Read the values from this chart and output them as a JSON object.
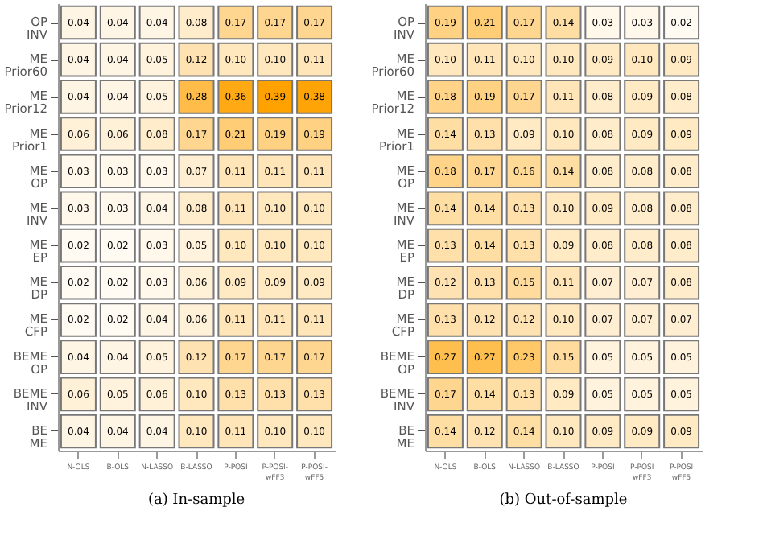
{
  "chart_data": [
    {
      "type": "heatmap",
      "title": "(a) In-sample",
      "data_labels": true,
      "cell_labels": [
        [
          "0.04",
          "0.04",
          "0.04",
          "0.08",
          "0.17",
          "0.17",
          "0.17"
        ],
        [
          "0.04",
          "0.04",
          "0.05",
          "0.12",
          "0.10",
          "0.10",
          "0.11"
        ],
        [
          "0.04",
          "0.04",
          "0.05",
          "0.28",
          "0.36",
          "0.39",
          "0.38"
        ],
        [
          "0.06",
          "0.06",
          "0.08",
          "0.17",
          "0.21",
          "0.19",
          "0.19"
        ],
        [
          "0.03",
          "0.03",
          "0.03",
          "0.07",
          "0.11",
          "0.11",
          "0.11"
        ],
        [
          "0.03",
          "0.03",
          "0.04",
          "0.08",
          "0.11",
          "0.10",
          "0.10"
        ],
        [
          "0.02",
          "0.02",
          "0.03",
          "0.05",
          "0.10",
          "0.10",
          "0.10"
        ],
        [
          "0.02",
          "0.02",
          "0.03",
          "0.06",
          "0.09",
          "0.09",
          "0.09"
        ],
        [
          "0.02",
          "0.02",
          "0.04",
          "0.06",
          "0.11",
          "0.11",
          "0.11"
        ],
        [
          "0.04",
          "0.04",
          "0.05",
          "0.12",
          "0.17",
          "0.17",
          "0.17"
        ],
        [
          "0.06",
          "0.05",
          "0.06",
          "0.10",
          "0.13",
          "0.13",
          "0.13"
        ],
        [
          "0.04",
          "0.04",
          "0.04",
          "0.10",
          "0.11",
          "0.10",
          "0.10"
        ]
      ],
      "categories": [
        "N-OLS",
        "B-OLS",
        "N-LASSO",
        "B-LASSO",
        "P-POSI",
        "P-POSI-\nwFF3",
        "P-POSI-\nwFF5"
      ],
      "y_categories": [
        "OP\nINV",
        "ME\nPrior60",
        "ME\nPrior12",
        "ME\nPrior1",
        "ME\nOP",
        "ME\nINV",
        "ME\nEP",
        "ME\nDP",
        "ME\nCFP",
        "BEME\nOP",
        "BEME\nINV",
        "BE\nME"
      ],
      "cells": [
        [
          0.04,
          0.04,
          0.04,
          0.08,
          0.17,
          0.17,
          0.17
        ],
        [
          0.04,
          0.04,
          0.05,
          0.12,
          0.1,
          0.1,
          0.11
        ],
        [
          0.04,
          0.04,
          0.05,
          0.28,
          0.36,
          0.39,
          0.38
        ],
        [
          0.06,
          0.06,
          0.08,
          0.17,
          0.21,
          0.19,
          0.19
        ],
        [
          0.03,
          0.03,
          0.03,
          0.07,
          0.11,
          0.11,
          0.11
        ],
        [
          0.03,
          0.03,
          0.04,
          0.08,
          0.11,
          0.1,
          0.1
        ],
        [
          0.02,
          0.02,
          0.03,
          0.05,
          0.1,
          0.1,
          0.1
        ],
        [
          0.02,
          0.02,
          0.03,
          0.06,
          0.09,
          0.09,
          0.09
        ],
        [
          0.02,
          0.02,
          0.04,
          0.06,
          0.11,
          0.11,
          0.11
        ],
        [
          0.04,
          0.04,
          0.05,
          0.12,
          0.17,
          0.17,
          0.17
        ],
        [
          0.06,
          0.05,
          0.06,
          0.1,
          0.13,
          0.13,
          0.13
        ],
        [
          0.04,
          0.04,
          0.04,
          0.1,
          0.11,
          0.1,
          0.1
        ]
      ]
    },
    {
      "type": "heatmap",
      "title": "(b) Out-of-sample",
      "data_labels": true,
      "cell_labels": [
        [
          "0.19",
          "0.21",
          "0.17",
          "0.14",
          "0.03",
          "0.03",
          "0.02"
        ],
        [
          "0.10",
          "0.11",
          "0.10",
          "0.10",
          "0.09",
          "0.10",
          "0.09"
        ],
        [
          "0.18",
          "0.19",
          "0.17",
          "0.11",
          "0.08",
          "0.09",
          "0.08"
        ],
        [
          "0.14",
          "0.13",
          "0.09",
          "0.10",
          "0.08",
          "0.09",
          "0.09"
        ],
        [
          "0.18",
          "0.17",
          "0.16",
          "0.14",
          "0.08",
          "0.08",
          "0.08"
        ],
        [
          "0.14",
          "0.14",
          "0.13",
          "0.10",
          "0.09",
          "0.08",
          "0.08"
        ],
        [
          "0.13",
          "0.14",
          "0.13",
          "0.09",
          "0.08",
          "0.08",
          "0.08"
        ],
        [
          "0.12",
          "0.13",
          "0.15",
          "0.11",
          "0.07",
          "0.07",
          "0.08"
        ],
        [
          "0.13",
          "0.12",
          "0.12",
          "0.10",
          "0.07",
          "0.07",
          "0.07"
        ],
        [
          "0.27",
          "0.27",
          "0.23",
          "0.15",
          "0.05",
          "0.05",
          "0.05"
        ],
        [
          "0.17",
          "0.14",
          "0.13",
          "0.09",
          "0.05",
          "0.05",
          "0.05"
        ],
        [
          "0.14",
          "0.12",
          "0.14",
          "0.10",
          "0.09",
          "0.09",
          "0.09"
        ]
      ],
      "categories": [
        "N-OLS",
        "B-OLS",
        "N-LASSO",
        "B-LASSO",
        "P-POSI",
        "P-POSI\nwFF3",
        "P-POSI\nwFF5"
      ],
      "y_categories": [
        "OP\nINV",
        "ME\nPrior60",
        "ME\nPrior12",
        "ME\nPrior1",
        "ME\nOP",
        "ME\nINV",
        "ME\nEP",
        "ME\nDP",
        "ME\nCFP",
        "BEME\nOP",
        "BEME\nINV",
        "BE\nME"
      ],
      "cells": [
        [
          0.19,
          0.21,
          0.17,
          0.14,
          0.03,
          0.03,
          0.02
        ],
        [
          0.1,
          0.11,
          0.1,
          0.1,
          0.09,
          0.1,
          0.09
        ],
        [
          0.18,
          0.19,
          0.17,
          0.11,
          0.08,
          0.09,
          0.08
        ],
        [
          0.14,
          0.13,
          0.09,
          0.1,
          0.08,
          0.09,
          0.09
        ],
        [
          0.18,
          0.17,
          0.16,
          0.14,
          0.08,
          0.08,
          0.08
        ],
        [
          0.14,
          0.14,
          0.13,
          0.1,
          0.09,
          0.08,
          0.08
        ],
        [
          0.13,
          0.14,
          0.13,
          0.09,
          0.08,
          0.08,
          0.08
        ],
        [
          0.12,
          0.13,
          0.15,
          0.11,
          0.07,
          0.07,
          0.08
        ],
        [
          0.13,
          0.12,
          0.12,
          0.1,
          0.07,
          0.07,
          0.07
        ],
        [
          0.27,
          0.27,
          0.23,
          0.15,
          0.05,
          0.05,
          0.05
        ],
        [
          0.17,
          0.14,
          0.13,
          0.09,
          0.05,
          0.05,
          0.05
        ],
        [
          0.14,
          0.12,
          0.14,
          0.1,
          0.09,
          0.09,
          0.09
        ]
      ]
    }
  ]
}
